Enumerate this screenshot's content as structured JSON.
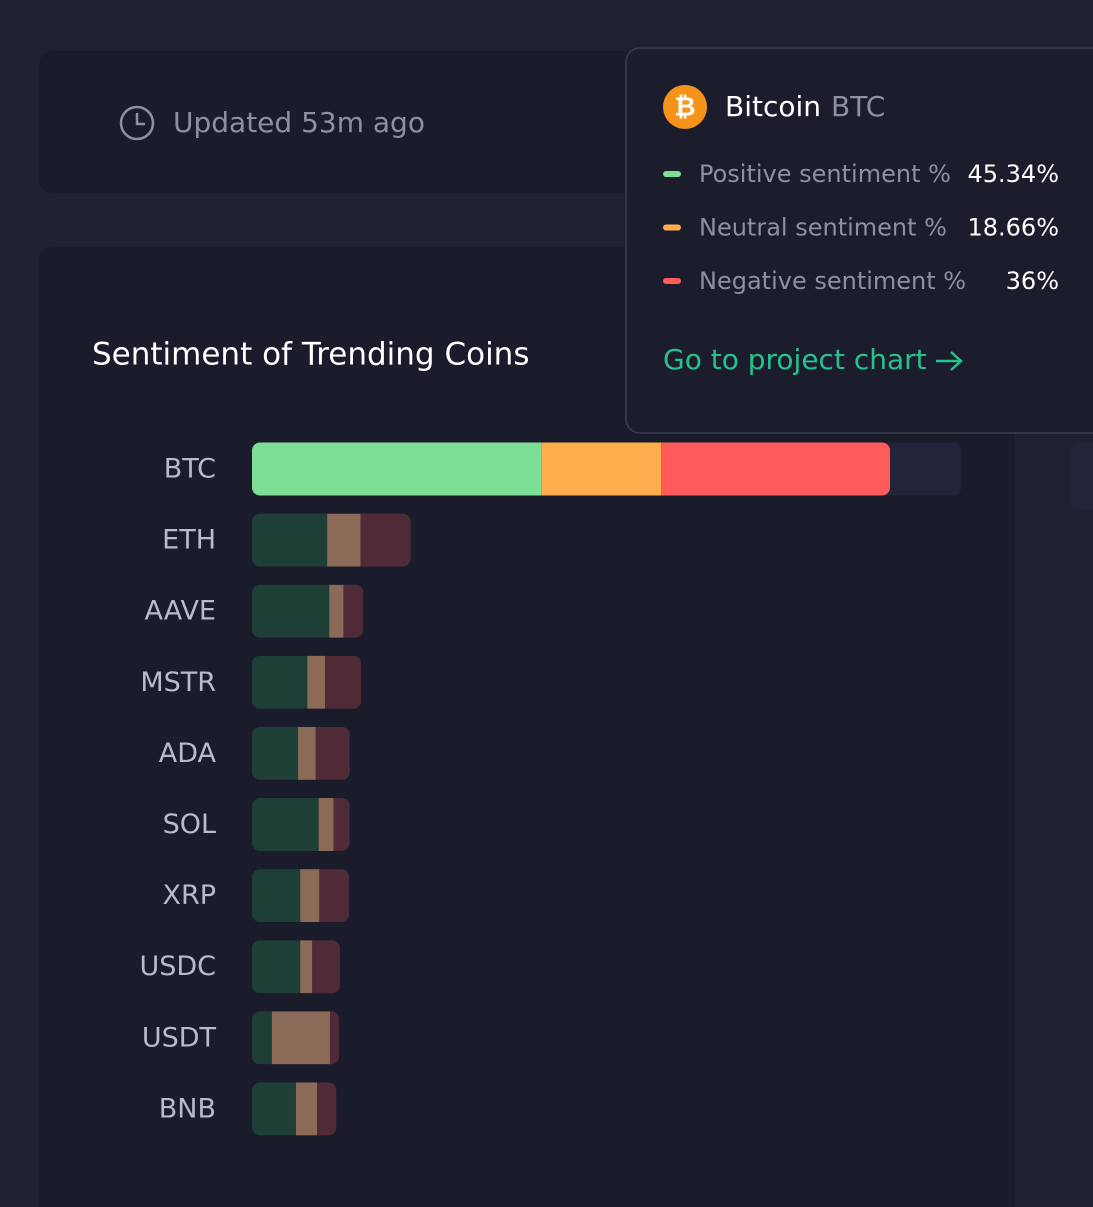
{
  "header": {
    "updated": "Updated 53m ago"
  },
  "chart_data": {
    "type": "stacked-bar-horizontal",
    "title": "Sentiment of Trending Coins",
    "categories": [
      "BTC",
      "ETH",
      "AAVE",
      "MSTR",
      "ADA",
      "SOL",
      "XRP",
      "USDC",
      "USDT",
      "BNB"
    ],
    "xlim": [
      0,
      100
    ],
    "highlighted": 0,
    "series": [
      {
        "name": "Positive sentiment %",
        "color": "#7ddf96",
        "muted_color": "#1d3f35",
        "values": [
          40.8,
          10.6,
          10.9,
          7.8,
          6.5,
          9.4,
          6.8,
          6.8,
          2.8,
          6.2
        ]
      },
      {
        "name": "Neutral sentiment %",
        "color": "#ffad4d",
        "muted_color": "#8b6a58",
        "values": [
          16.9,
          4.7,
          2.0,
          2.5,
          2.5,
          2.1,
          2.7,
          1.7,
          8.2,
          3.0
        ]
      },
      {
        "name": "Negative sentiment %",
        "color": "#ff5b5b",
        "muted_color": "#4f2b38",
        "values": [
          32.3,
          7.1,
          2.8,
          5.1,
          4.8,
          2.3,
          4.2,
          3.9,
          1.3,
          2.7
        ]
      }
    ],
    "tooltip": {
      "name": "Bitcoin",
      "values": [
        45.34,
        18.66,
        36
      ],
      "value_labels": [
        "45.34%",
        "18.66%",
        "36%"
      ],
      "link": "Go to project chart"
    }
  }
}
